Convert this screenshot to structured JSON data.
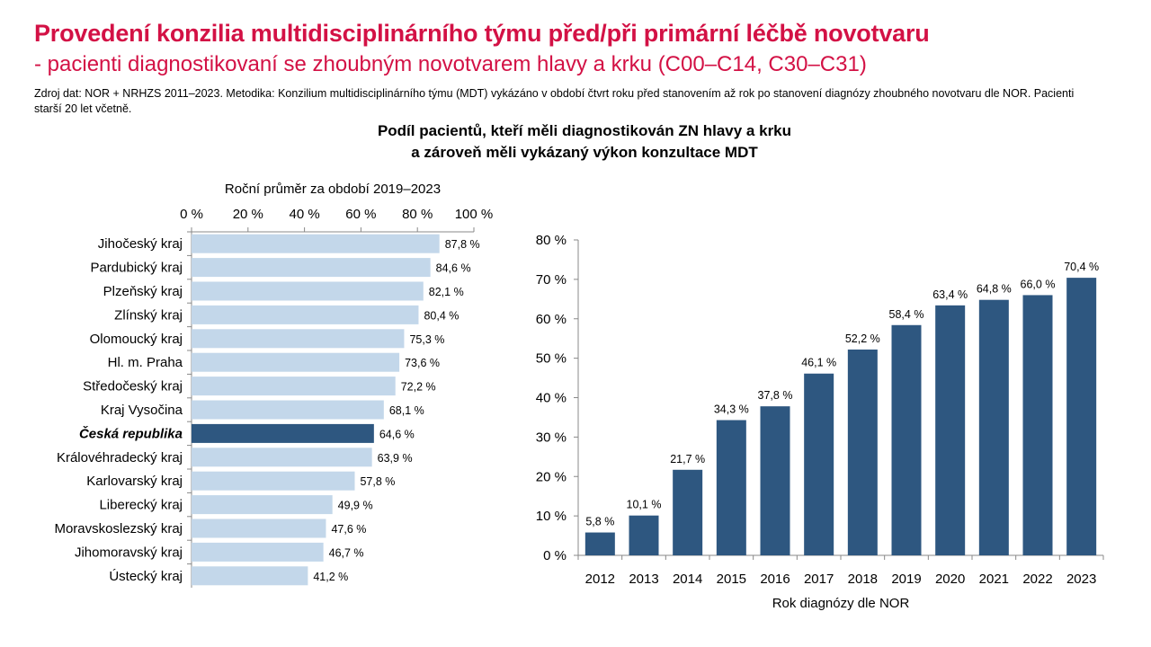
{
  "header": {
    "title": "Provedení konzilia multidisciplinárního týmu před/při primární léčbě novotvaru",
    "subtitle": "- pacienti diagnostikovaní se zhoubným novotvarem hlavy a krku (C00–C14, C30–C31)",
    "source": "Zdroj dat: NOR + NRHZS 2011–2023. Metodika: Konzilium multidisciplinárního týmu (MDT) vykázáno v období čtvrt roku před stanovením až rok po stanovení diagnózy zhoubného novotvaru dle NOR. Pacienti starší 20 let včetně.",
    "chart_title_line1": "Podíl pacientů, kteří měli diagnostikován ZN hlavy a krku",
    "chart_title_line2": "a zároveň měli vykázaný výkon konzultace MDT"
  },
  "chart_data": [
    {
      "type": "bar",
      "orientation": "horizontal",
      "title": "Roční průměr za období 2019–2023",
      "xlim": [
        0,
        100
      ],
      "x_ticks": [
        "0 %",
        "20 %",
        "40 %",
        "60 %",
        "80 %",
        "100 %"
      ],
      "categories": [
        "Jihočeský kraj",
        "Pardubický kraj",
        "Plzeňský kraj",
        "Zlínský kraj",
        "Olomoucký kraj",
        "Hl. m. Praha",
        "Středočeský kraj",
        "Kraj Vysočina",
        "Česká republika",
        "Královéhradecký kraj",
        "Karlovarský kraj",
        "Liberecký kraj",
        "Moravskoslezský kraj",
        "Jihomoravský kraj",
        "Ústecký kraj"
      ],
      "values": [
        87.8,
        84.6,
        82.1,
        80.4,
        75.3,
        73.6,
        72.2,
        68.1,
        64.6,
        63.9,
        57.8,
        49.9,
        47.6,
        46.7,
        41.2
      ],
      "value_labels": [
        "87,8 %",
        "84,6 %",
        "82,1 %",
        "80,4 %",
        "75,3 %",
        "73,6 %",
        "72,2 %",
        "68,1 %",
        "64,6 %",
        "63,9 %",
        "57,8 %",
        "49,9 %",
        "47,6 %",
        "46,7 %",
        "41,2 %"
      ],
      "highlight": "Česká republika",
      "colors": {
        "bar": "#c3d7ea",
        "highlight": "#2e5780"
      }
    },
    {
      "type": "bar",
      "orientation": "vertical",
      "xlabel": "Rok diagnózy dle NOR",
      "ylim": [
        0,
        80
      ],
      "y_ticks": [
        "0 %",
        "10 %",
        "20 %",
        "30 %",
        "40 %",
        "50 %",
        "60 %",
        "70 %",
        "80 %"
      ],
      "categories": [
        "2012",
        "2013",
        "2014",
        "2015",
        "2016",
        "2017",
        "2018",
        "2019",
        "2020",
        "2021",
        "2022",
        "2023"
      ],
      "values": [
        5.8,
        10.1,
        21.7,
        34.3,
        37.8,
        46.1,
        52.2,
        58.4,
        63.4,
        64.8,
        66.0,
        70.4
      ],
      "value_labels": [
        "5,8 %",
        "10,1 %",
        "21,7 %",
        "34,3 %",
        "37,8 %",
        "46,1 %",
        "52,2 %",
        "58,4 %",
        "63,4 %",
        "64,8 %",
        "66,0 %",
        "70,4 %"
      ],
      "colors": {
        "bar": "#2e5780"
      }
    }
  ]
}
